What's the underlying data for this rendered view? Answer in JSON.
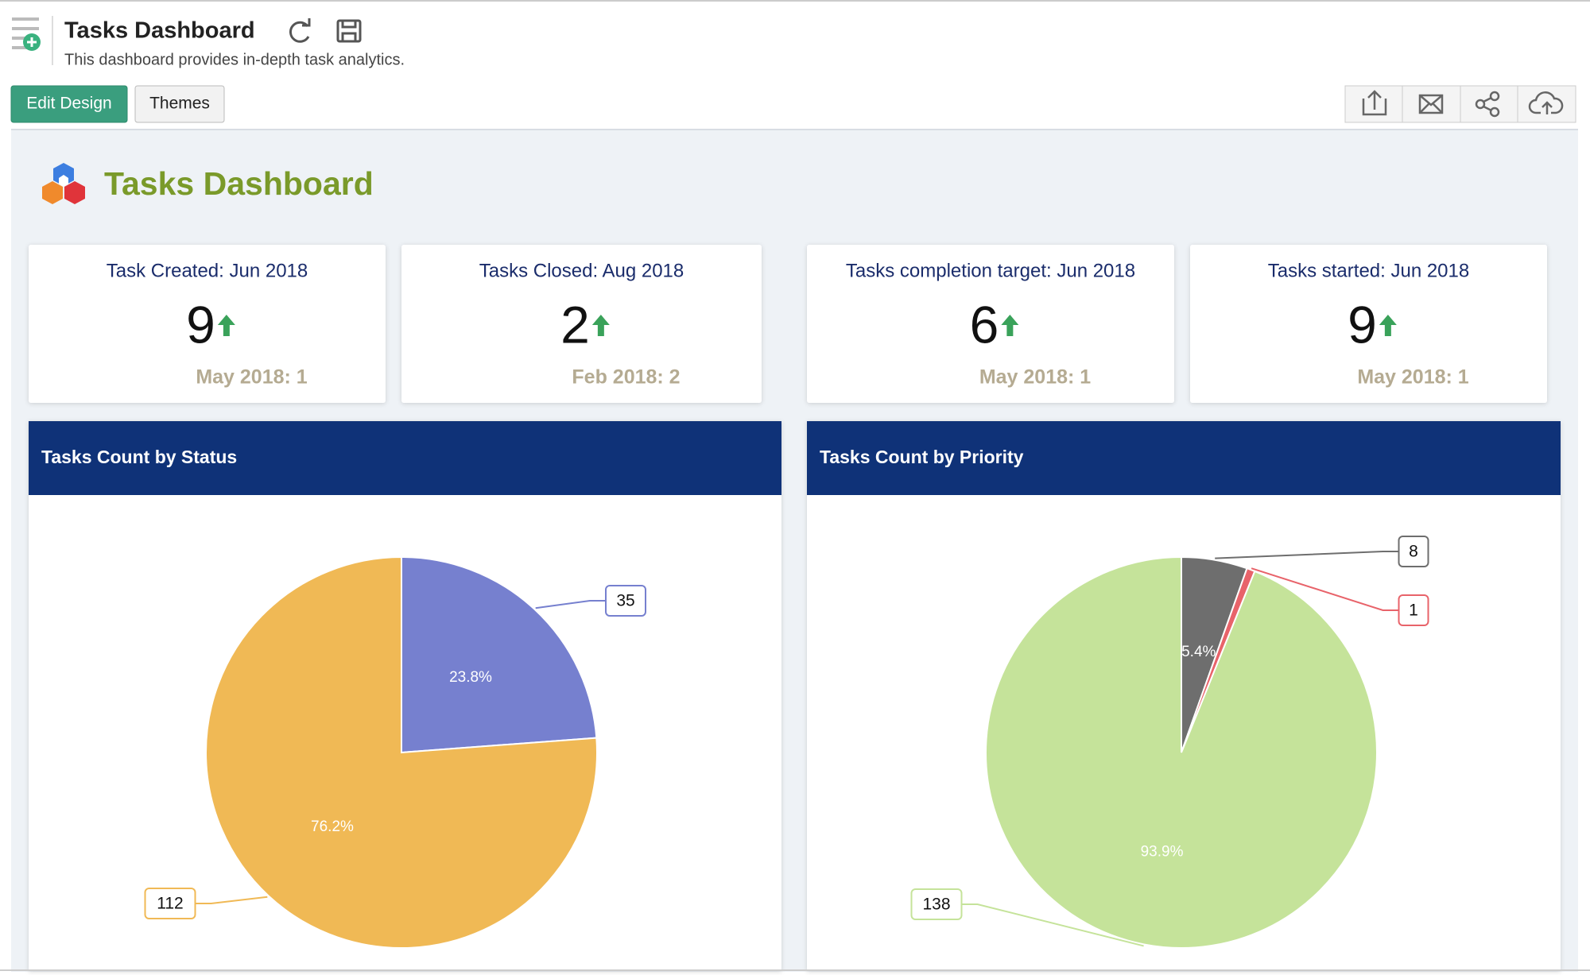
{
  "header": {
    "title": "Tasks Dashboard",
    "subtitle": "This dashboard provides in-depth task analytics."
  },
  "toolbar": {
    "buttons": [
      "Edit Design",
      "Themes"
    ]
  },
  "dashboard": {
    "title": "Tasks Dashboard"
  },
  "kpis": [
    {
      "title": "Task Created: Jun 2018",
      "value": 9,
      "comparison": "May 2018: 1"
    },
    {
      "title": "Tasks Closed: Aug 2018",
      "value": 2,
      "comparison": "Feb 2018: 2"
    },
    {
      "title": "Tasks completion target: Jun 2018",
      "value": 6,
      "comparison": "May 2018: 1"
    },
    {
      "title": "Tasks started: Jun 2018",
      "value": 9,
      "comparison": "May 2018: 1"
    }
  ],
  "chart_data": [
    {
      "type": "pie",
      "title": "Tasks Count by Status",
      "values": [
        35,
        112
      ],
      "percent_labels": [
        "23.8%",
        "76.2%"
      ],
      "colors": [
        "#7680cf",
        "#f0b955"
      ]
    },
    {
      "type": "pie",
      "title": "Tasks Count by Priority",
      "values": [
        8,
        1,
        138
      ],
      "percent_labels": [
        "5.4%",
        null,
        "93.9%"
      ],
      "colors": [
        "#6e6e6e",
        "#e8636a",
        "#c5e39a"
      ]
    }
  ]
}
